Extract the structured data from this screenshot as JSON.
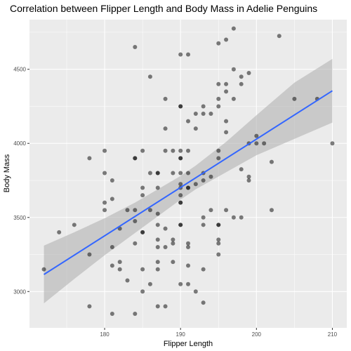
{
  "chart_data": {
    "type": "scatter",
    "title": "Correlation between Flipper Length and Body Mass in Adelie Penguins",
    "xlabel": "Flipper Length",
    "ylabel": "Body Mass",
    "xlim": [
      170.1,
      211.9
    ],
    "ylim": [
      2755,
      4835
    ],
    "x_ticks": [
      180,
      190,
      200,
      210
    ],
    "y_ticks": [
      3000,
      3500,
      4000,
      4500
    ],
    "grid": true,
    "legend": "none",
    "colors": {
      "panel": "#ebebeb",
      "grid": "#ffffff",
      "points": "#000000",
      "trend_line": "#3366ff",
      "confidence_band": "#b3b3b3"
    },
    "points": [
      {
        "x": 172,
        "y": 3150
      },
      {
        "x": 174,
        "y": 3400
      },
      {
        "x": 176,
        "y": 3450
      },
      {
        "x": 178,
        "y": 2900
      },
      {
        "x": 178,
        "y": 3250
      },
      {
        "x": 178,
        "y": 3900
      },
      {
        "x": 180,
        "y": 3550
      },
      {
        "x": 180,
        "y": 3600
      },
      {
        "x": 180,
        "y": 3800
      },
      {
        "x": 180,
        "y": 3950
      },
      {
        "x": 181,
        "y": 2850
      },
      {
        "x": 181,
        "y": 3175
      },
      {
        "x": 181,
        "y": 3300
      },
      {
        "x": 181,
        "y": 3625
      },
      {
        "x": 181,
        "y": 3750
      },
      {
        "x": 182,
        "y": 3150
      },
      {
        "x": 182,
        "y": 3200
      },
      {
        "x": 182,
        "y": 3425
      },
      {
        "x": 183,
        "y": 3075
      },
      {
        "x": 183,
        "y": 3550
      },
      {
        "x": 184,
        "y": 2850
      },
      {
        "x": 184,
        "y": 3325
      },
      {
        "x": 184,
        "y": 3475
      },
      {
        "x": 184,
        "y": 3550
      },
      {
        "x": 184,
        "y": 3900
      },
      {
        "x": 184,
        "y": 3900
      },
      {
        "x": 184,
        "y": 4650
      },
      {
        "x": 185,
        "y": 3000
      },
      {
        "x": 185,
        "y": 3150
      },
      {
        "x": 185,
        "y": 3400
      },
      {
        "x": 185,
        "y": 3400
      },
      {
        "x": 185,
        "y": 3650
      },
      {
        "x": 185,
        "y": 3700
      },
      {
        "x": 185,
        "y": 3950
      },
      {
        "x": 186,
        "y": 3050
      },
      {
        "x": 186,
        "y": 3550
      },
      {
        "x": 186,
        "y": 3800
      },
      {
        "x": 186,
        "y": 4450
      },
      {
        "x": 187,
        "y": 2900
      },
      {
        "x": 187,
        "y": 3150
      },
      {
        "x": 187,
        "y": 3200
      },
      {
        "x": 187,
        "y": 3300
      },
      {
        "x": 187,
        "y": 3350
      },
      {
        "x": 187,
        "y": 3450
      },
      {
        "x": 187,
        "y": 3525
      },
      {
        "x": 187,
        "y": 3700
      },
      {
        "x": 187,
        "y": 3800
      },
      {
        "x": 187,
        "y": 3800
      },
      {
        "x": 188,
        "y": 2900
      },
      {
        "x": 188,
        "y": 3300
      },
      {
        "x": 188,
        "y": 3425
      },
      {
        "x": 188,
        "y": 3950
      },
      {
        "x": 188,
        "y": 4100
      },
      {
        "x": 188,
        "y": 4300
      },
      {
        "x": 189,
        "y": 3200
      },
      {
        "x": 189,
        "y": 3325
      },
      {
        "x": 189,
        "y": 3350
      },
      {
        "x": 189,
        "y": 3800
      },
      {
        "x": 189,
        "y": 3950
      },
      {
        "x": 190,
        "y": 3050
      },
      {
        "x": 190,
        "y": 3450
      },
      {
        "x": 190,
        "y": 3450
      },
      {
        "x": 190,
        "y": 3600
      },
      {
        "x": 190,
        "y": 3600
      },
      {
        "x": 190,
        "y": 3650
      },
      {
        "x": 190,
        "y": 3700
      },
      {
        "x": 190,
        "y": 3725
      },
      {
        "x": 190,
        "y": 3800
      },
      {
        "x": 190,
        "y": 3900
      },
      {
        "x": 190,
        "y": 3900
      },
      {
        "x": 190,
        "y": 3950
      },
      {
        "x": 190,
        "y": 4250
      },
      {
        "x": 190,
        "y": 4250
      },
      {
        "x": 190,
        "y": 4600
      },
      {
        "x": 191,
        "y": 3050
      },
      {
        "x": 191,
        "y": 3175
      },
      {
        "x": 191,
        "y": 3300
      },
      {
        "x": 191,
        "y": 3325
      },
      {
        "x": 191,
        "y": 3700
      },
      {
        "x": 191,
        "y": 3700
      },
      {
        "x": 191,
        "y": 3800
      },
      {
        "x": 191,
        "y": 3950
      },
      {
        "x": 191,
        "y": 4150
      },
      {
        "x": 191,
        "y": 4600
      },
      {
        "x": 192,
        "y": 3000
      },
      {
        "x": 192,
        "y": 3725
      },
      {
        "x": 192,
        "y": 4100
      },
      {
        "x": 192,
        "y": 4200
      },
      {
        "x": 193,
        "y": 2925
      },
      {
        "x": 193,
        "y": 3150
      },
      {
        "x": 193,
        "y": 3450
      },
      {
        "x": 193,
        "y": 3500
      },
      {
        "x": 193,
        "y": 3750
      },
      {
        "x": 193,
        "y": 3800
      },
      {
        "x": 193,
        "y": 4200
      },
      {
        "x": 193,
        "y": 4250
      },
      {
        "x": 194,
        "y": 3550
      },
      {
        "x": 194,
        "y": 3775
      },
      {
        "x": 194,
        "y": 4200
      },
      {
        "x": 195,
        "y": 3250
      },
      {
        "x": 195,
        "y": 3325
      },
      {
        "x": 195,
        "y": 3350
      },
      {
        "x": 195,
        "y": 3450
      },
      {
        "x": 195,
        "y": 3450
      },
      {
        "x": 195,
        "y": 3900
      },
      {
        "x": 195,
        "y": 3950
      },
      {
        "x": 195,
        "y": 4250
      },
      {
        "x": 195,
        "y": 4300
      },
      {
        "x": 195,
        "y": 4400
      },
      {
        "x": 195,
        "y": 4675
      },
      {
        "x": 196,
        "y": 3550
      },
      {
        "x": 196,
        "y": 4075
      },
      {
        "x": 196,
        "y": 4150
      },
      {
        "x": 196,
        "y": 4350
      },
      {
        "x": 196,
        "y": 4400
      },
      {
        "x": 196,
        "y": 4700
      },
      {
        "x": 197,
        "y": 3500
      },
      {
        "x": 197,
        "y": 4300
      },
      {
        "x": 197,
        "y": 4500
      },
      {
        "x": 197,
        "y": 4775
      },
      {
        "x": 198,
        "y": 3500
      },
      {
        "x": 198,
        "y": 3825
      },
      {
        "x": 198,
        "y": 4400
      },
      {
        "x": 198,
        "y": 4450
      },
      {
        "x": 199,
        "y": 3750
      },
      {
        "x": 199,
        "y": 3775
      },
      {
        "x": 199,
        "y": 4000
      },
      {
        "x": 199,
        "y": 4475
      },
      {
        "x": 200,
        "y": 4000
      },
      {
        "x": 200,
        "y": 4050
      },
      {
        "x": 201,
        "y": 4000
      },
      {
        "x": 202,
        "y": 3550
      },
      {
        "x": 202,
        "y": 3875
      },
      {
        "x": 203,
        "y": 4725
      },
      {
        "x": 205,
        "y": 4300
      },
      {
        "x": 208,
        "y": 4300
      },
      {
        "x": 210,
        "y": 4000
      }
    ],
    "trend_line": {
      "method": "linear",
      "x": [
        172,
        210
      ],
      "y": [
        3115,
        4355
      ],
      "confidence_band": [
        {
          "x": 172,
          "lower": 2920,
          "upper": 3310
        },
        {
          "x": 176,
          "lower": 3085,
          "upper": 3400
        },
        {
          "x": 180,
          "lower": 3245,
          "upper": 3495
        },
        {
          "x": 184,
          "lower": 3395,
          "upper": 3600
        },
        {
          "x": 188,
          "lower": 3545,
          "upper": 3720
        },
        {
          "x": 190,
          "lower": 3620,
          "upper": 3780
        },
        {
          "x": 192,
          "lower": 3690,
          "upper": 3850
        },
        {
          "x": 196,
          "lower": 3805,
          "upper": 4010
        },
        {
          "x": 200,
          "lower": 3920,
          "upper": 4190
        },
        {
          "x": 205,
          "lower": 4030,
          "upper": 4410
        },
        {
          "x": 210,
          "lower": 4140,
          "upper": 4570
        }
      ]
    }
  }
}
